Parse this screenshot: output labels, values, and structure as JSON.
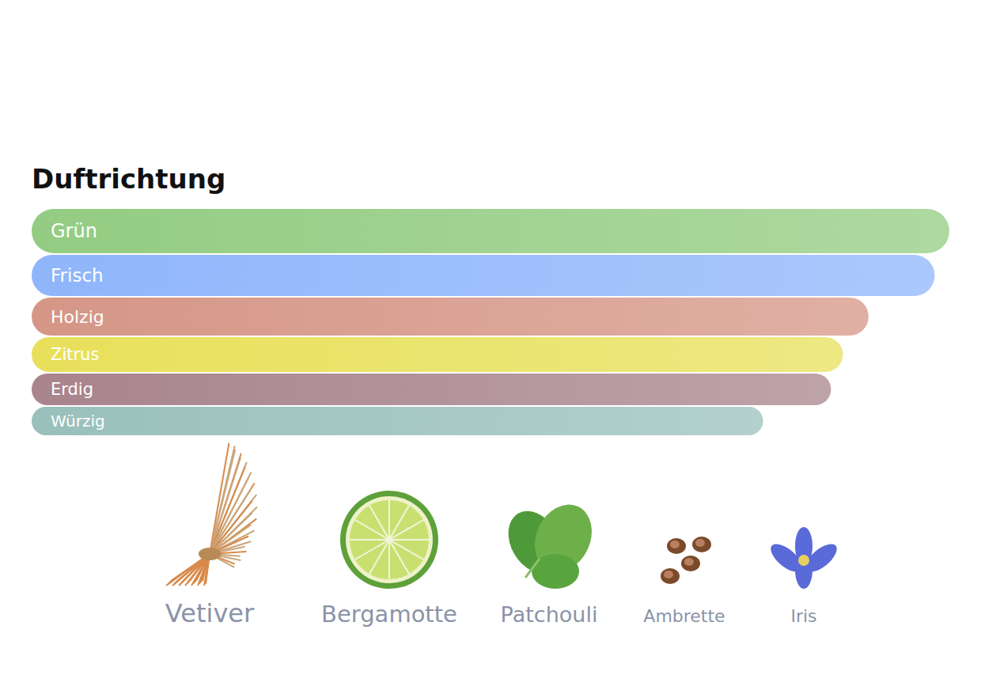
{
  "chart_data": {
    "type": "bar",
    "title": "Duftrichtung",
    "orientation": "horizontal",
    "categories": [
      "Grün",
      "Frisch",
      "Holzig",
      "Zitrus",
      "Erdig",
      "Würzig"
    ],
    "values": [
      100,
      98.4,
      91.2,
      88.4,
      87.1,
      79.7
    ],
    "colors": [
      "#93cc82",
      "#8fb5fb",
      "#d59686",
      "#e8e05a",
      "#a8848c",
      "#99c0bb"
    ],
    "xlim": [
      0,
      100
    ],
    "tick_labels": false,
    "grid": false
  },
  "notes": [
    "Vetiver",
    "Bergamotte",
    "Patchouli",
    "Ambrette",
    "Iris"
  ]
}
